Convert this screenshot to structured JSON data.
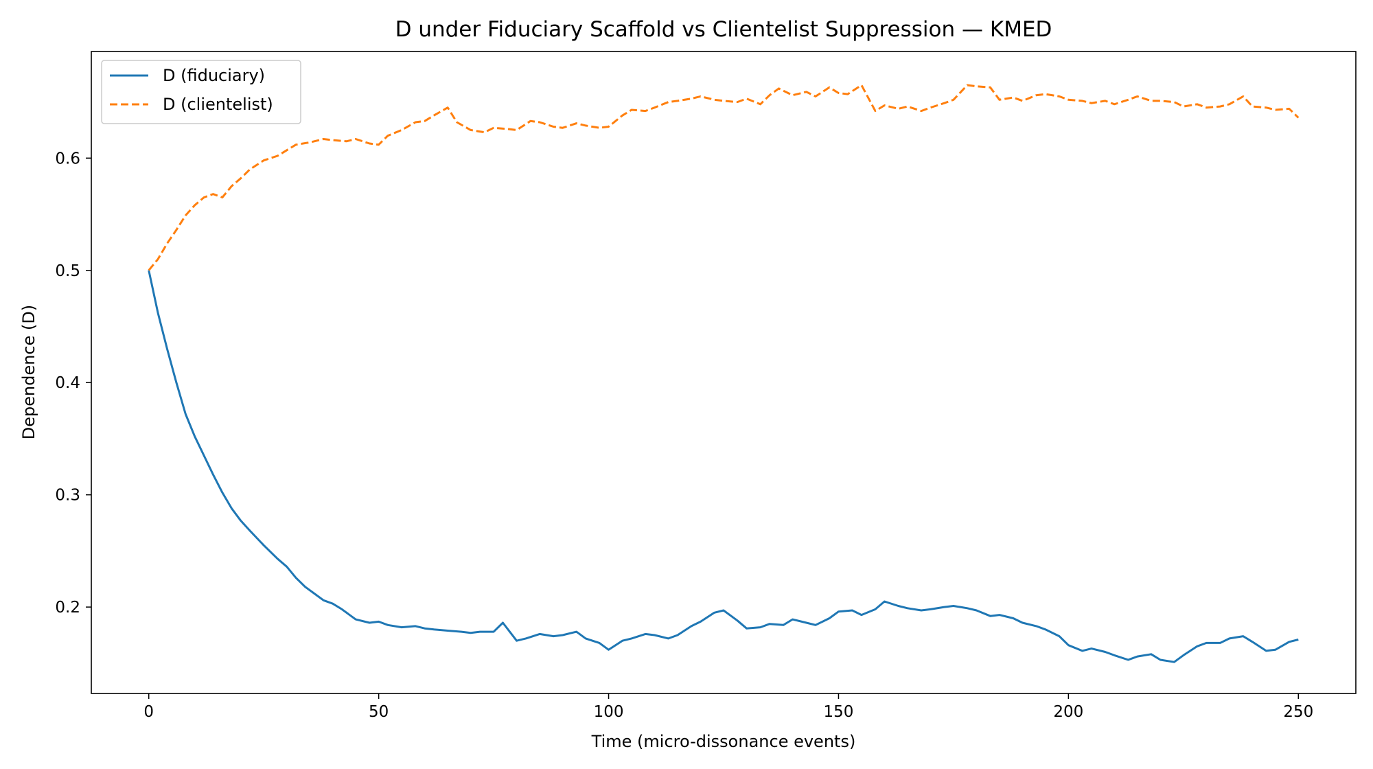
{
  "chart_data": {
    "type": "line",
    "title": "D under Fiduciary Scaffold vs Clientelist Suppression — KMED",
    "xlabel": "Time (micro-dissonance events)",
    "ylabel": "Dependence (D)",
    "xlim": [
      -12.5,
      262.5
    ],
    "ylim": [
      0.123,
      0.695
    ],
    "xticks": [
      0,
      50,
      100,
      150,
      200,
      250
    ],
    "yticks": [
      0.2,
      0.3,
      0.4,
      0.5,
      0.6
    ],
    "xtick_labels": [
      "0",
      "50",
      "100",
      "150",
      "200",
      "250"
    ],
    "ytick_labels": [
      "0.2",
      "0.3",
      "0.4",
      "0.5",
      "0.6"
    ],
    "grid": false,
    "legend_position": "top-left",
    "series": [
      {
        "name": "D (fiduciary)",
        "color": "#1f77b4",
        "style": "solid",
        "x": [
          0,
          2,
          4,
          6,
          8,
          10,
          12,
          14,
          16,
          18,
          20,
          22,
          25,
          28,
          30,
          32,
          34,
          36,
          38,
          40,
          42,
          45,
          48,
          50,
          52,
          55,
          58,
          60,
          62,
          65,
          68,
          70,
          72,
          75,
          77,
          80,
          82,
          85,
          88,
          90,
          93,
          95,
          98,
          100,
          103,
          105,
          108,
          110,
          113,
          115,
          118,
          120,
          123,
          125,
          128,
          130,
          133,
          135,
          138,
          140,
          143,
          145,
          148,
          150,
          153,
          155,
          158,
          160,
          163,
          165,
          168,
          170,
          173,
          175,
          178,
          180,
          183,
          185,
          188,
          190,
          193,
          195,
          198,
          200,
          203,
          205,
          208,
          210,
          213,
          215,
          218,
          220,
          223,
          225,
          228,
          230,
          233,
          235,
          238,
          240,
          243,
          245,
          248,
          250
        ],
        "y": [
          0.5,
          0.462,
          0.43,
          0.4,
          0.372,
          0.352,
          0.335,
          0.318,
          0.302,
          0.288,
          0.277,
          0.268,
          0.255,
          0.243,
          0.236,
          0.226,
          0.218,
          0.212,
          0.206,
          0.203,
          0.198,
          0.189,
          0.186,
          0.187,
          0.184,
          0.182,
          0.183,
          0.181,
          0.18,
          0.179,
          0.178,
          0.177,
          0.178,
          0.178,
          0.186,
          0.17,
          0.172,
          0.176,
          0.174,
          0.175,
          0.178,
          0.172,
          0.168,
          0.162,
          0.17,
          0.172,
          0.176,
          0.175,
          0.172,
          0.175,
          0.183,
          0.187,
          0.195,
          0.197,
          0.188,
          0.181,
          0.182,
          0.185,
          0.184,
          0.189,
          0.186,
          0.184,
          0.19,
          0.196,
          0.197,
          0.193,
          0.198,
          0.205,
          0.201,
          0.199,
          0.197,
          0.198,
          0.2,
          0.201,
          0.199,
          0.197,
          0.192,
          0.193,
          0.19,
          0.186,
          0.183,
          0.18,
          0.174,
          0.166,
          0.161,
          0.163,
          0.16,
          0.157,
          0.153,
          0.156,
          0.158,
          0.153,
          0.151,
          0.157,
          0.165,
          0.168,
          0.168,
          0.172,
          0.174,
          0.169,
          0.161,
          0.162,
          0.169,
          0.171
        ]
      },
      {
        "name": "D (clientelist)",
        "color": "#ff7f0e",
        "style": "dashed",
        "x": [
          0,
          2,
          4,
          6,
          8,
          10,
          12,
          14,
          16,
          18,
          20,
          22,
          25,
          28,
          30,
          32,
          35,
          38,
          40,
          43,
          45,
          48,
          50,
          52,
          55,
          58,
          60,
          62,
          65,
          67,
          70,
          73,
          75,
          78,
          80,
          83,
          85,
          88,
          90,
          93,
          95,
          98,
          100,
          103,
          105,
          108,
          110,
          113,
          115,
          118,
          120,
          123,
          125,
          128,
          130,
          133,
          135,
          137,
          140,
          143,
          145,
          148,
          150,
          152,
          155,
          158,
          160,
          163,
          165,
          168,
          170,
          173,
          175,
          178,
          180,
          183,
          185,
          188,
          190,
          193,
          195,
          198,
          200,
          203,
          205,
          208,
          210,
          213,
          215,
          218,
          220,
          223,
          225,
          228,
          230,
          233,
          235,
          238,
          240,
          243,
          245,
          248,
          250
        ],
        "y": [
          0.5,
          0.51,
          0.524,
          0.536,
          0.549,
          0.558,
          0.565,
          0.568,
          0.565,
          0.575,
          0.582,
          0.59,
          0.598,
          0.602,
          0.607,
          0.612,
          0.614,
          0.617,
          0.616,
          0.615,
          0.617,
          0.613,
          0.612,
          0.62,
          0.625,
          0.632,
          0.633,
          0.638,
          0.645,
          0.632,
          0.625,
          0.623,
          0.627,
          0.626,
          0.625,
          0.633,
          0.632,
          0.628,
          0.627,
          0.631,
          0.629,
          0.627,
          0.628,
          0.638,
          0.643,
          0.642,
          0.645,
          0.65,
          0.651,
          0.653,
          0.655,
          0.652,
          0.651,
          0.65,
          0.653,
          0.648,
          0.656,
          0.662,
          0.656,
          0.659,
          0.655,
          0.663,
          0.658,
          0.657,
          0.665,
          0.642,
          0.647,
          0.644,
          0.646,
          0.642,
          0.645,
          0.649,
          0.652,
          0.665,
          0.664,
          0.663,
          0.652,
          0.654,
          0.651,
          0.656,
          0.657,
          0.655,
          0.652,
          0.651,
          0.649,
          0.651,
          0.648,
          0.652,
          0.655,
          0.651,
          0.651,
          0.65,
          0.646,
          0.648,
          0.645,
          0.646,
          0.648,
          0.655,
          0.646,
          0.645,
          0.643,
          0.644,
          0.636
        ]
      }
    ]
  }
}
